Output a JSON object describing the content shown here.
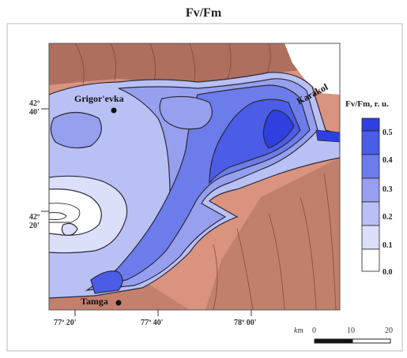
{
  "title": "Fv/Fm",
  "legend": {
    "title": "Fv/Fm, r. u.",
    "ticks": [
      "0.5",
      "0.4",
      "0.3",
      "0.2",
      "0.1",
      "0.0"
    ],
    "colors": [
      "#2f3fe0",
      "#4b5ce6",
      "#6d7ceb",
      "#96a0ef",
      "#b9c0f4",
      "#dcdffa",
      "#ffffff"
    ]
  },
  "latitude_labels": [
    {
      "deg": "42º",
      "min": "40'"
    },
    {
      "deg": "42º",
      "min": "20'"
    }
  ],
  "longitude_labels": [
    "77º 20'",
    "77º 40'",
    "78º 00'"
  ],
  "places": {
    "grigorevka": "Grigor'evka",
    "karakol": "Karakol",
    "tamga": "Tamga"
  },
  "scale": {
    "unit": "km",
    "ticks": [
      "0",
      "10",
      "20"
    ]
  },
  "colors": {
    "terrain": "#d9937e",
    "mountain": "#a8695a",
    "lake_low": "#dcdffa",
    "lake_high": "#2f3fe0",
    "contour": "#2a2a3a"
  }
}
